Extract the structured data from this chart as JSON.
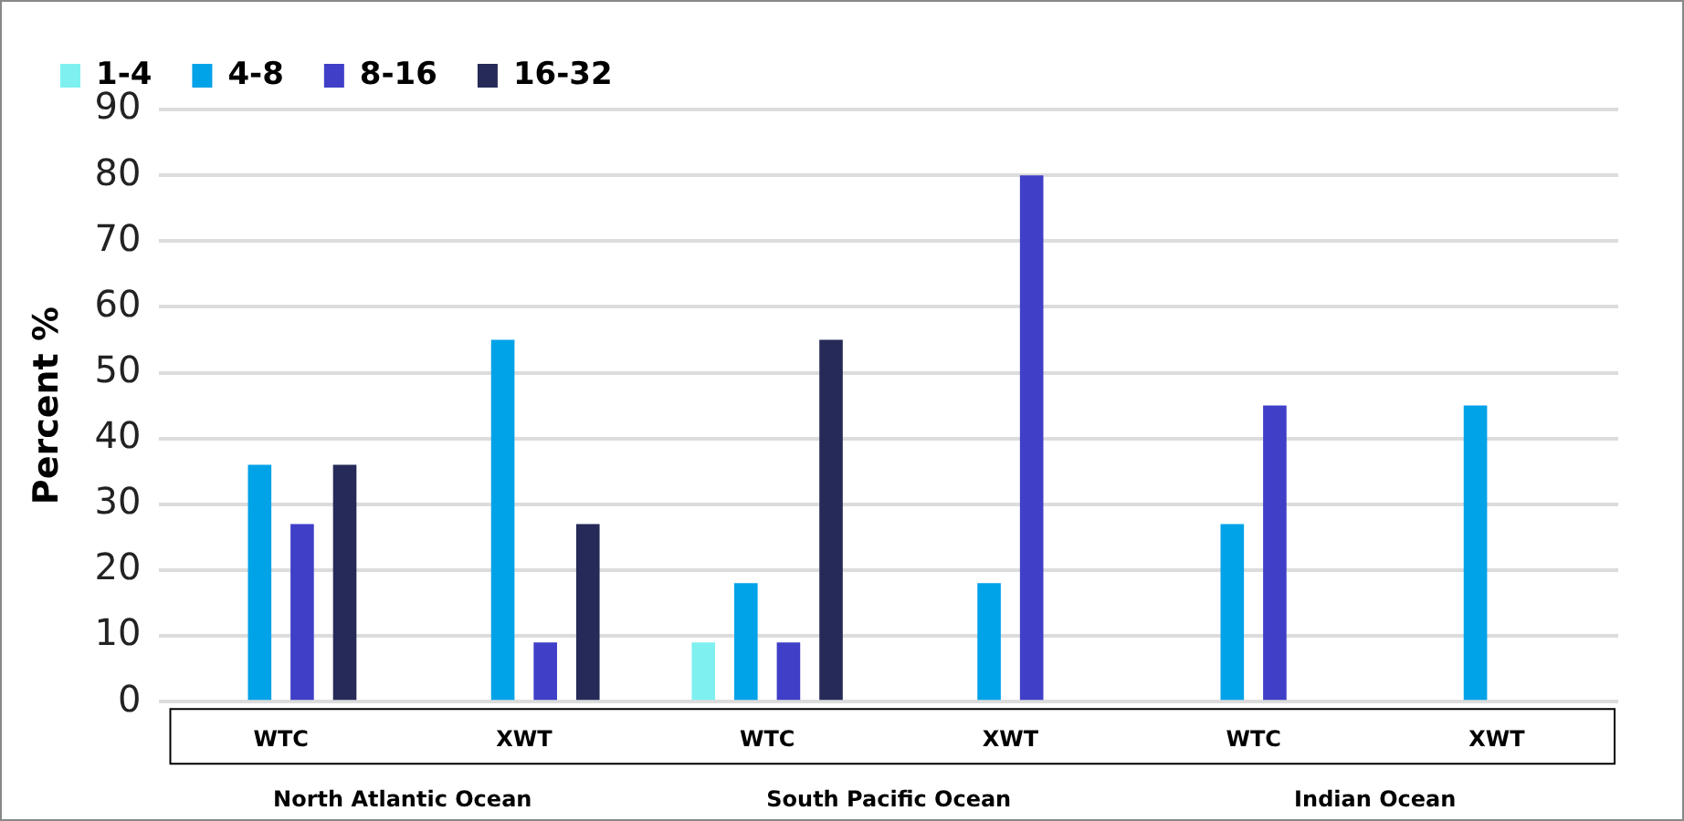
{
  "chart_data": {
    "type": "bar",
    "ylabel": "Percent %",
    "categories": [
      "WTC",
      "XWT",
      "WTC",
      "XWT",
      "WTC",
      "XWT"
    ],
    "series": [
      {
        "name": "1-4",
        "color": "#7ff0f0",
        "values": [
          0,
          0,
          9,
          0,
          0,
          0
        ]
      },
      {
        "name": "4-8",
        "color": "#00a2e8",
        "values": [
          36,
          55,
          18,
          18,
          27,
          45
        ]
      },
      {
        "name": "8-16",
        "color": "#3f3fc8",
        "values": [
          27,
          9,
          9,
          80,
          45,
          0
        ]
      },
      {
        "name": "16-32",
        "color": "#262a58",
        "values": [
          36,
          27,
          55,
          0,
          0,
          0
        ]
      }
    ],
    "ylim": [
      0,
      90
    ],
    "yticks": [
      0,
      10,
      20,
      30,
      40,
      50,
      60,
      70,
      80,
      90
    ],
    "grid": "y",
    "legend": "top left",
    "annotations": [
      "North Atlantic Ocean",
      "South Pacific Ocean",
      "Indian Ocean"
    ]
  }
}
